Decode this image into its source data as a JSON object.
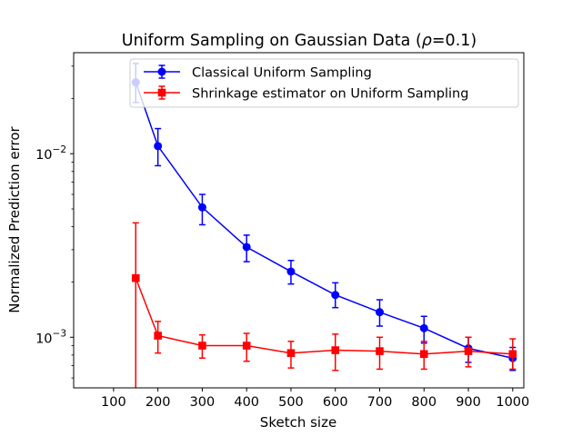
{
  "chart_data": {
    "type": "line",
    "title_prefix": "Uniform Sampling on Gaussian Data (",
    "title_rho": "ρ",
    "title_suffix": "=0.1)",
    "xlabel": "Sketch size",
    "ylabel": "Normalized Prediction error",
    "y_scale": "log",
    "xlim": [
      10,
      1025
    ],
    "ylim": [
      0.00053,
      0.0355
    ],
    "grid": false,
    "legend_position": "top-right",
    "x_ticks": [
      100,
      200,
      300,
      400,
      500,
      600,
      700,
      800,
      900,
      1000
    ],
    "x_tick_labels": [
      "100",
      "200",
      "300",
      "400",
      "500",
      "600",
      "700",
      "800",
      "900",
      "1000"
    ],
    "y_ticks": [
      {
        "value": 0.01,
        "base": "10",
        "exp": "−2"
      },
      {
        "value": 0.001,
        "base": "10",
        "exp": "−3"
      }
    ],
    "x": [
      150,
      200,
      300,
      400,
      500,
      600,
      700,
      800,
      900,
      1000
    ],
    "series": [
      {
        "name": "Classical Uniform Sampling",
        "color": "#0000ff",
        "marker": "circle",
        "values": [
          0.0245,
          0.011,
          0.0051,
          0.0031,
          0.00228,
          0.0017,
          0.00137,
          0.00112,
          0.00087,
          0.00077
        ],
        "err_low": [
          0.019,
          0.0086,
          0.0041,
          0.00258,
          0.00195,
          0.00145,
          0.00115,
          0.00093,
          0.00073,
          0.00066
        ],
        "err_high": [
          0.031,
          0.0137,
          0.006,
          0.0036,
          0.00262,
          0.00198,
          0.0016,
          0.0013,
          0.001,
          0.00088
        ]
      },
      {
        "name": "Shrinkage estimator on Uniform Sampling",
        "color": "#ff0000",
        "marker": "square",
        "values": [
          0.0021,
          0.00102,
          0.0009,
          0.0009,
          0.00082,
          0.00085,
          0.00084,
          0.00081,
          0.00084,
          0.00081
        ],
        "err_low": [
          0.0004,
          0.00082,
          0.00077,
          0.00074,
          0.00068,
          0.00066,
          0.00067,
          0.00067,
          0.00069,
          0.00067
        ],
        "err_high": [
          0.0042,
          0.00122,
          0.00103,
          0.00105,
          0.00095,
          0.00104,
          0.001,
          0.00095,
          0.001,
          0.00098
        ]
      }
    ]
  }
}
